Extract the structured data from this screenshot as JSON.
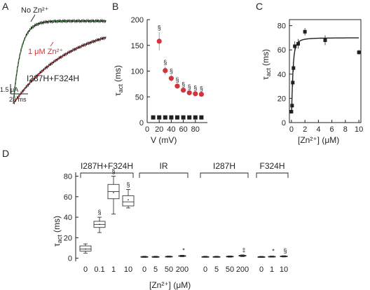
{
  "figure": {
    "panels": [
      "A",
      "B",
      "C",
      "D"
    ],
    "colors": {
      "ink": "#231f20",
      "red": "#d1343a",
      "trace_green": "#3a8a3a"
    }
  },
  "chart_data": [
    {
      "id": "A",
      "type": "line",
      "title": "",
      "annotations": {
        "no_zn": "No Zn²⁺",
        "zn": "1 μM Zn²⁺",
        "mutant": "I287H+F324H"
      },
      "scale_bars": {
        "current": "1.5 μA",
        "time": "25 ms"
      },
      "series": [
        {
          "name": "No Zn²⁺",
          "tau_ms": 8,
          "color": "#231f20",
          "fit_color": "#3a8a3a"
        },
        {
          "name": "1 μM Zn²⁺",
          "tau_ms": 62,
          "color": "#231f20",
          "fit_color": "#d1343a"
        }
      ]
    },
    {
      "id": "B",
      "type": "scatter",
      "xlabel": "V (mV)",
      "ylabel": "τact (ms)",
      "ylabel_main": "τ",
      "ylabel_sub": "act",
      "ylabel_unit": " (ms)",
      "xlim": [
        0,
        100
      ],
      "ylim": [
        0,
        200
      ],
      "xticks": [
        0,
        20,
        40,
        60,
        80
      ],
      "yticks": [
        0,
        50,
        100,
        150,
        200
      ],
      "sig_symbol": "§",
      "series": [
        {
          "name": "control",
          "color": "#231f20",
          "x": [
            10,
            20,
            30,
            40,
            50,
            60,
            70,
            80,
            90
          ],
          "y": [
            10,
            10,
            10,
            10,
            10,
            10,
            10,
            10,
            10
          ]
        },
        {
          "name": "zinc",
          "color": "#d1343a",
          "x": [
            20,
            30,
            40,
            50,
            60,
            70,
            80,
            90
          ],
          "y": [
            158,
            101,
            86,
            71,
            63,
            58,
            56,
            55
          ],
          "err": [
            18,
            8,
            6,
            4,
            3,
            3,
            3,
            3
          ]
        }
      ]
    },
    {
      "id": "C",
      "type": "scatter",
      "xlabel": "[Zn²⁺] (μM)",
      "ylabel": "τact (ms)",
      "ylabel_main": "τ",
      "ylabel_sub": "act",
      "ylabel_unit": " (ms)",
      "xlim": [
        -0.3,
        10.3
      ],
      "ylim": [
        0,
        85
      ],
      "xticks": [
        0,
        2,
        4,
        6,
        8,
        10
      ],
      "yticks": [
        0,
        20,
        40,
        60,
        80
      ],
      "points": {
        "x": [
          0,
          0.1,
          0.2,
          0.3,
          0.5,
          1,
          2,
          5,
          10
        ],
        "y": [
          9,
          14,
          33,
          45,
          63,
          65,
          75,
          68,
          58
        ],
        "err": [
          1,
          2,
          3,
          3,
          4,
          4,
          3,
          4,
          2
        ]
      },
      "fit": {
        "type": "hill",
        "tmin": 8,
        "tmax": 70,
        "k": 0.2,
        "n": 1.7
      }
    },
    {
      "id": "D",
      "type": "box",
      "xlabel": "[Zn²⁺] (μM)",
      "ylabel": "τact (ms)",
      "ylabel_main": "τ",
      "ylabel_sub": "act",
      "ylabel_unit": " (ms)",
      "ylim": [
        -3,
        92
      ],
      "yticks": [
        0,
        20,
        40,
        60,
        80
      ],
      "groups": [
        {
          "name": "I287H+F324H",
          "categories": [
            "0",
            "0.1",
            "1",
            "10"
          ],
          "boxes": [
            {
              "min": 5,
              "q1": 7,
              "median": 9,
              "mean": 9,
              "q3": 12,
              "max": 14,
              "mark": ""
            },
            {
              "min": 25,
              "q1": 30,
              "median": 33,
              "mean": 33,
              "q3": 36,
              "max": 40,
              "mark": "§"
            },
            {
              "min": 43,
              "q1": 58,
              "median": 65,
              "mean": 64,
              "q3": 72,
              "max": 80,
              "mark": "§"
            },
            {
              "min": 49,
              "q1": 51,
              "median": 55,
              "mean": 57,
              "q3": 61,
              "max": 67,
              "mark": "§"
            }
          ]
        },
        {
          "name": "IR",
          "categories": [
            "0",
            "5",
            "50",
            "200"
          ],
          "boxes": [
            {
              "min": 0.8,
              "q1": 1.1,
              "median": 1.3,
              "mean": 1.3,
              "q3": 1.6,
              "max": 1.9,
              "mark": ""
            },
            {
              "min": 0.8,
              "q1": 1.1,
              "median": 1.3,
              "mean": 1.3,
              "q3": 1.6,
              "max": 1.9,
              "mark": ""
            },
            {
              "min": 1,
              "q1": 1.3,
              "median": 1.5,
              "mean": 1.5,
              "q3": 1.8,
              "max": 2.1,
              "mark": ""
            },
            {
              "min": 1.5,
              "q1": 1.9,
              "median": 2.2,
              "mean": 2.2,
              "q3": 2.5,
              "max": 2.9,
              "mark": "*"
            }
          ]
        },
        {
          "name": "I287H",
          "categories": [
            "0",
            "5",
            "50",
            "200"
          ],
          "boxes": [
            {
              "min": 0.9,
              "q1": 1.2,
              "median": 1.4,
              "mean": 1.4,
              "q3": 1.6,
              "max": 1.9,
              "mark": ""
            },
            {
              "min": 0.9,
              "q1": 1.2,
              "median": 1.4,
              "mean": 1.4,
              "q3": 1.6,
              "max": 1.9,
              "mark": ""
            },
            {
              "min": 1,
              "q1": 1.3,
              "median": 1.6,
              "mean": 1.6,
              "q3": 1.9,
              "max": 2.2,
              "mark": ""
            },
            {
              "min": 1.6,
              "q1": 2,
              "median": 2.4,
              "mean": 2.4,
              "q3": 2.8,
              "max": 3.2,
              "mark": "‡"
            }
          ]
        },
        {
          "name": "F324H",
          "categories": [
            "0",
            "1",
            "10"
          ],
          "boxes": [
            {
              "min": 0.8,
              "q1": 1.1,
              "median": 1.3,
              "mean": 1.3,
              "q3": 1.5,
              "max": 1.8,
              "mark": ""
            },
            {
              "min": 1,
              "q1": 1.3,
              "median": 1.5,
              "mean": 1.5,
              "q3": 1.8,
              "max": 2.1,
              "mark": "*"
            },
            {
              "min": 1.2,
              "q1": 1.5,
              "median": 1.8,
              "mean": 1.8,
              "q3": 2.1,
              "max": 2.4,
              "mark": "§"
            }
          ]
        }
      ]
    }
  ]
}
